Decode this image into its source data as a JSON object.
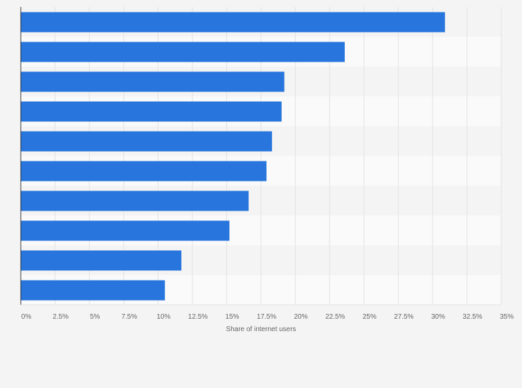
{
  "chart_data": {
    "type": "bar",
    "orientation": "horizontal",
    "categories": [
      "",
      "",
      "",
      "",
      "",
      "",
      "",
      "",
      "",
      ""
    ],
    "values": [
      30.9,
      23.6,
      19.2,
      19.0,
      18.3,
      17.9,
      16.6,
      15.2,
      11.7,
      10.5
    ],
    "title": "",
    "xlabel": "Share of internet users",
    "ylabel": "",
    "xlim": [
      0,
      35
    ],
    "x_ticks": [
      "0%",
      "2.5%",
      "5%",
      "7.5%",
      "10%",
      "12.5%",
      "15%",
      "17.5%",
      "20%",
      "22.5%",
      "25%",
      "27.5%",
      "30%",
      "32.5%",
      "35%"
    ],
    "grid": true,
    "legend": "none",
    "bar_color": "#2876dd",
    "band_colors": [
      "#f4f4f4",
      "#fafafa"
    ],
    "gridline_color": "#e2e2e2",
    "text_color": "#666666"
  }
}
